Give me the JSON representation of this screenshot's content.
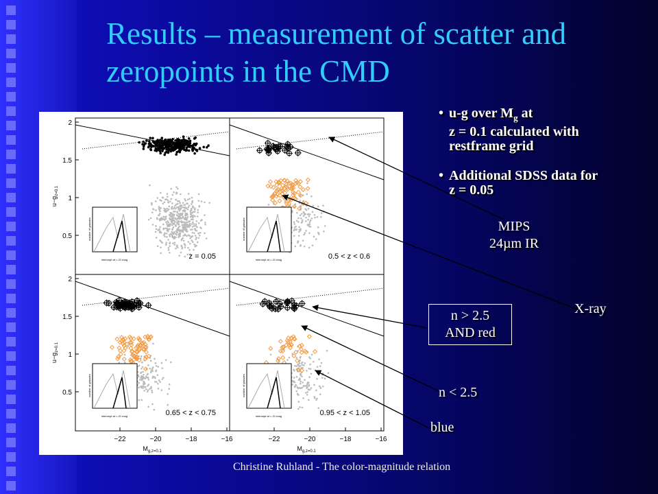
{
  "title": "Results – measurement of scatter and zeropoints in the CMD",
  "bullets": [
    {
      "main": "u-g over M",
      "sub": "g",
      "after": " at",
      "line2": "z = 0.1 calculated with restframe grid"
    },
    {
      "main": "Additional SDSS data for z = 0.05"
    }
  ],
  "annotations": {
    "mips": [
      "MIPS",
      "24µm IR"
    ],
    "xray": "X-ray",
    "n_high": [
      "n > 2.5",
      "AND red"
    ],
    "n_low": "n < 2.5",
    "blue": "blue"
  },
  "footer": "Christine Ruhland - The color-magnitude relation",
  "figure": {
    "y_label": {
      "main": "u−g",
      "sub": "z=0.1"
    },
    "x_label": {
      "main": "M",
      "sub": "g,z=0.1"
    },
    "yticks": [
      "2",
      "1.5",
      "1",
      "0.5"
    ],
    "xticks": [
      "−22",
      "−20",
      "−18",
      "−16"
    ],
    "panels": [
      "z = 0.05",
      "0.5 < z < 0.6",
      "0.65 < z < 0.75",
      "0.95 < z < 1.05"
    ],
    "inset_y_label": "number of galaxies",
    "inset_x_label": "intercept at =-21 mag"
  }
}
